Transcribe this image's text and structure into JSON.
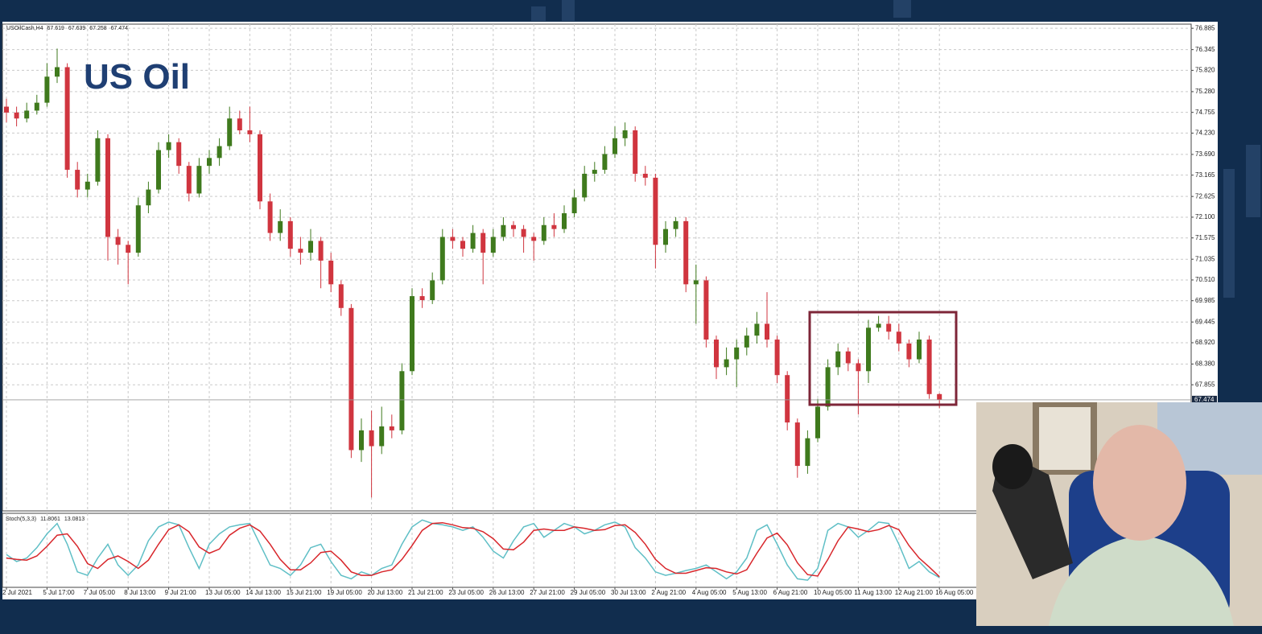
{
  "chart_data": [
    {
      "type": "candlestick",
      "title": "US Oil",
      "symbol": "USOilCash,H4",
      "categories": [
        "2 Jul 2021",
        null,
        null,
        null,
        "5 Jul 17:00",
        null,
        null,
        null,
        "7 Jul 05:00",
        null,
        null,
        null,
        "8 Jul 13:00",
        null,
        null,
        null,
        "9 Jul 21:00",
        null,
        null,
        null,
        "13 Jul 05:00",
        null,
        null,
        null,
        "14 Jul 13:00",
        null,
        null,
        null,
        "15 Jul 21:00",
        null,
        null,
        null,
        "19 Jul 05:00",
        null,
        null,
        null,
        "20 Jul 13:00",
        null,
        null,
        null,
        "21 Jul 21:00",
        null,
        null,
        null,
        "23 Jul 05:00",
        null,
        null,
        null,
        "26 Jul 13:00",
        null,
        null,
        null,
        "27 Jul 21:00",
        null,
        null,
        null,
        "29 Jul 05:00",
        null,
        null,
        null,
        "30 Jul 13:00",
        null,
        null,
        null,
        "2 Aug 21:00",
        null,
        null,
        null,
        "4 Aug 05:00",
        null,
        null,
        null,
        "5 Aug 13:00",
        null,
        null,
        null,
        "6 Aug 21:00",
        null,
        null,
        null,
        "10 Aug 05:00",
        null,
        null,
        null,
        "11 Aug 13:00",
        null,
        null,
        null,
        "12 Aug 21:00",
        null,
        null,
        null,
        "16 Aug 05:00"
      ],
      "open": [
        74.9,
        74.75,
        74.6,
        74.8,
        75.0,
        75.66,
        75.9,
        73.3,
        72.8,
        73.0,
        74.1,
        71.6,
        71.4,
        71.2,
        72.4,
        72.8,
        73.8,
        74.0,
        73.4,
        72.7,
        73.4,
        73.6,
        73.9,
        74.6,
        74.3,
        74.2,
        72.5,
        71.7,
        72.0,
        71.3,
        71.2,
        71.5,
        71.0,
        70.4,
        69.8,
        66.2,
        66.7,
        66.3,
        66.8,
        66.7,
        68.2,
        70.1,
        70.0,
        70.5,
        71.6,
        71.5,
        71.3,
        71.7,
        71.2,
        71.6,
        71.9,
        71.8,
        71.6,
        71.5,
        71.9,
        71.8,
        72.2,
        72.6,
        73.2,
        73.3,
        73.7,
        74.1,
        74.3,
        73.2,
        73.1,
        71.4,
        71.8,
        72.0,
        70.4,
        70.5,
        69.0,
        68.3,
        68.5,
        68.8,
        69.1,
        69.4,
        69.0,
        68.1,
        66.9,
        65.8,
        66.5,
        67.3,
        68.3,
        68.7,
        68.4,
        68.2,
        69.3,
        69.4,
        69.2,
        68.9,
        68.5,
        69.0,
        67.619
      ],
      "high": [
        75.1,
        74.9,
        75.0,
        75.2,
        76.0,
        76.37,
        76.0,
        73.5,
        73.2,
        74.3,
        74.2,
        71.8,
        71.5,
        72.6,
        73.0,
        74.0,
        74.2,
        74.1,
        73.5,
        73.6,
        73.8,
        74.1,
        74.9,
        74.8,
        74.9,
        74.3,
        72.7,
        72.3,
        72.1,
        71.6,
        71.8,
        71.6,
        71.2,
        70.5,
        69.9,
        67.0,
        67.2,
        67.3,
        67.1,
        68.4,
        70.3,
        70.3,
        70.7,
        71.8,
        71.8,
        71.6,
        71.9,
        71.8,
        71.8,
        72.1,
        72.0,
        71.9,
        71.7,
        72.1,
        72.2,
        72.4,
        72.8,
        73.4,
        73.5,
        73.9,
        74.4,
        74.5,
        74.4,
        73.4,
        73.2,
        72.0,
        72.1,
        72.1,
        70.9,
        70.6,
        69.1,
        68.8,
        69.0,
        69.3,
        69.7,
        70.2,
        69.1,
        68.2,
        67.0,
        66.7,
        67.5,
        68.5,
        68.9,
        68.8,
        68.5,
        69.5,
        69.6,
        69.6,
        69.4,
        69.0,
        69.2,
        69.1,
        67.639
      ],
      "low": [
        74.5,
        74.4,
        74.5,
        74.7,
        74.9,
        75.5,
        73.1,
        72.6,
        72.6,
        72.9,
        71.0,
        70.9,
        70.4,
        71.1,
        72.2,
        72.7,
        73.6,
        73.2,
        72.5,
        72.6,
        73.2,
        73.4,
        73.8,
        74.2,
        74.0,
        72.3,
        71.5,
        71.5,
        71.1,
        70.9,
        71.0,
        70.3,
        70.2,
        69.6,
        66.0,
        65.9,
        65.0,
        66.1,
        66.5,
        66.6,
        68.1,
        69.8,
        69.9,
        70.4,
        71.3,
        71.1,
        71.2,
        70.4,
        71.1,
        71.5,
        71.6,
        71.2,
        71.0,
        71.4,
        71.6,
        71.7,
        72.1,
        72.5,
        73.0,
        73.2,
        73.6,
        73.9,
        73.0,
        72.9,
        70.8,
        71.2,
        71.6,
        70.2,
        69.4,
        68.8,
        68.0,
        68.1,
        67.8,
        68.6,
        68.9,
        68.8,
        67.9,
        66.7,
        65.5,
        65.6,
        66.4,
        67.2,
        68.1,
        68.2,
        67.1,
        67.9,
        69.2,
        69.0,
        68.7,
        68.3,
        68.4,
        67.5,
        67.258
      ],
      "close": [
        74.75,
        74.6,
        74.8,
        75.0,
        75.66,
        75.9,
        73.3,
        72.8,
        73.0,
        74.1,
        71.6,
        71.4,
        71.2,
        72.4,
        72.8,
        73.8,
        74.0,
        73.4,
        72.7,
        73.4,
        73.6,
        73.9,
        74.6,
        74.3,
        74.2,
        72.5,
        71.7,
        72.0,
        71.3,
        71.2,
        71.5,
        71.0,
        70.4,
        69.8,
        66.2,
        66.7,
        66.3,
        66.8,
        66.7,
        68.2,
        70.1,
        70.0,
        70.5,
        71.6,
        71.5,
        71.3,
        71.7,
        71.2,
        71.6,
        71.9,
        71.8,
        71.6,
        71.5,
        71.9,
        71.8,
        72.2,
        72.6,
        73.2,
        73.3,
        73.7,
        74.1,
        74.3,
        73.2,
        73.1,
        71.4,
        71.8,
        72.0,
        70.4,
        70.5,
        69.0,
        68.3,
        68.5,
        68.8,
        69.1,
        69.4,
        69.0,
        68.1,
        66.9,
        65.8,
        66.5,
        67.3,
        68.3,
        68.7,
        68.4,
        68.2,
        69.3,
        69.4,
        69.2,
        68.9,
        68.5,
        69.0,
        67.619,
        67.474
      ],
      "up_color": "#3f7a1d",
      "down_color": "#d0353f",
      "ylim": [
        64.66,
        76.99
      ],
      "yticks": [
        76.885,
        76.345,
        {
          "value": 75.82,
          "label": "75.820"
        },
        {
          "value": 75.28,
          "label": "75.280"
        },
        74.755,
        {
          "value": 74.23,
          "label": "74.230"
        },
        {
          "value": 73.69,
          "label": "73.690"
        },
        73.165,
        72.625,
        {
          "value": 72.1,
          "label": "72.100"
        },
        71.575,
        71.035,
        {
          "value": 70.51,
          "label": "70.510"
        },
        69.985,
        69.445,
        {
          "value": 68.92,
          "label": "68.920"
        },
        {
          "value": 68.38,
          "label": "68.380"
        },
        67.855
      ],
      "grid": true
    },
    {
      "type": "line",
      "title": "Stoch(5,3,3)",
      "series": [
        {
          "color": "#5fbfc6",
          "values": [
            45,
            35,
            40,
            55,
            75,
            90,
            60,
            20,
            15,
            40,
            60,
            30,
            15,
            30,
            65,
            85,
            92,
            88,
            55,
            25,
            60,
            75,
            85,
            88,
            90,
            60,
            30,
            25,
            15,
            30,
            55,
            60,
            35,
            15,
            10,
            20,
            15,
            25,
            30,
            60,
            85,
            95,
            90,
            88,
            85,
            80,
            85,
            70,
            50,
            40,
            65,
            85,
            90,
            70,
            80,
            90,
            85,
            75,
            80,
            88,
            92,
            85,
            55,
            40,
            20,
            15,
            18,
            22,
            25,
            30,
            20,
            10,
            20,
            40,
            80,
            88,
            60,
            30,
            10,
            8,
            25,
            80,
            90,
            85,
            70,
            80,
            92,
            90,
            60,
            25,
            35,
            20,
            11.8061
          ]
        },
        {
          "color": "#d8262b",
          "values": [
            40,
            38,
            37,
            43,
            57,
            73,
            75,
            57,
            32,
            25,
            38,
            43,
            35,
            25,
            37,
            60,
            81,
            88,
            78,
            56,
            47,
            53,
            73,
            83,
            88,
            79,
            60,
            38,
            23,
            23,
            33,
            48,
            50,
            37,
            20,
            15,
            15,
            20,
            23,
            38,
            58,
            80,
            90,
            91,
            88,
            84,
            83,
            78,
            68,
            53,
            52,
            63,
            80,
            82,
            80,
            80,
            85,
            83,
            80,
            81,
            87,
            88,
            77,
            60,
            38,
            25,
            18,
            18,
            22,
            26,
            25,
            20,
            17,
            23,
            47,
            69,
            76,
            59,
            33,
            16,
            14,
            38,
            65,
            85,
            82,
            78,
            81,
            87,
            81,
            58,
            40,
            27,
            13.0813
          ]
        }
      ],
      "ylim": [
        0,
        100
      ]
    }
  ]
}
